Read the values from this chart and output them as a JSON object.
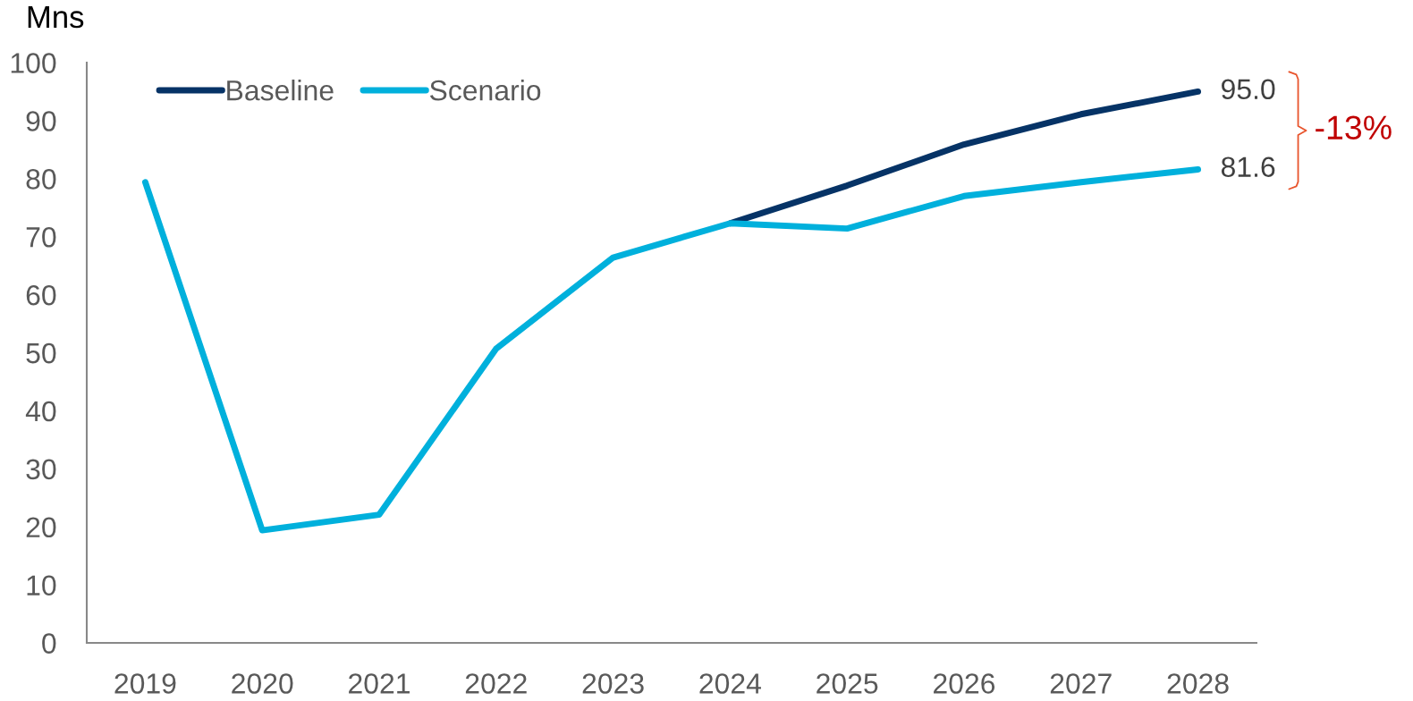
{
  "chart_data": {
    "type": "line",
    "ylabel": "Mns",
    "categories": [
      "2019",
      "2020",
      "2021",
      "2022",
      "2023",
      "2024",
      "2025",
      "2026",
      "2027",
      "2028"
    ],
    "series": [
      {
        "name": "Baseline",
        "color": "#063366",
        "values": [
          null,
          null,
          null,
          null,
          null,
          72.3,
          78.8,
          85.9,
          91.1,
          95.0
        ],
        "value_labels": [
          null,
          null,
          null,
          null,
          null,
          null,
          null,
          null,
          null,
          "95.0"
        ]
      },
      {
        "name": "Scenario",
        "color": "#00b0dc",
        "values": [
          79.4,
          19.4,
          22.1,
          50.7,
          66.4,
          72.3,
          71.4,
          77.0,
          79.4,
          81.6
        ],
        "value_labels": [
          null,
          null,
          null,
          null,
          null,
          null,
          null,
          null,
          null,
          "81.6"
        ]
      }
    ],
    "ylim": [
      0,
      100
    ],
    "yticks": [
      0,
      10,
      20,
      30,
      40,
      50,
      60,
      70,
      80,
      90,
      100
    ],
    "legend": "top left",
    "annotations": [
      "-13%"
    ]
  }
}
